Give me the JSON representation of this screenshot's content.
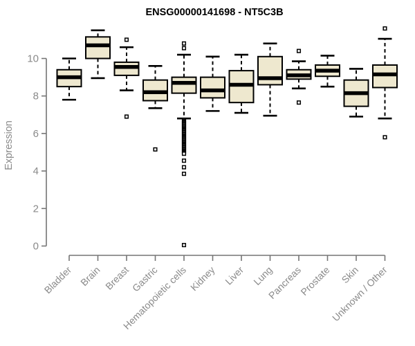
{
  "chart_data": {
    "type": "boxplot",
    "title": "ENSG00000141698 - NT5C3B",
    "ylabel": "Expression",
    "xlabel": "",
    "yticks": [
      0,
      2,
      4,
      6,
      8,
      10
    ],
    "ylim": [
      0,
      11.7
    ],
    "grid": false,
    "legend": "none",
    "categories": [
      "Bladder",
      "Brain",
      "Breast",
      "Gastric",
      "Hematopoietic cells",
      "Kidney",
      "Liver",
      "Lung",
      "Pancreas",
      "Prostate",
      "Skin",
      "Unknown / Other"
    ],
    "series": [
      {
        "category": "Bladder",
        "whisker_low": 7.8,
        "q1": 8.5,
        "median": 9.0,
        "q3": 9.4,
        "whisker_high": 10.0,
        "outliers": []
      },
      {
        "category": "Brain",
        "whisker_low": 8.95,
        "q1": 10.0,
        "median": 10.7,
        "q3": 11.15,
        "whisker_high": 11.5,
        "outliers": []
      },
      {
        "category": "Breast",
        "whisker_low": 8.3,
        "q1": 9.1,
        "median": 9.55,
        "q3": 9.8,
        "whisker_high": 10.6,
        "outliers": [
          11.0,
          6.9
        ]
      },
      {
        "category": "Gastric",
        "whisker_low": 7.35,
        "q1": 7.75,
        "median": 8.2,
        "q3": 8.85,
        "whisker_high": 9.6,
        "outliers": [
          5.15
        ]
      },
      {
        "category": "Hematopoietic cells",
        "whisker_low": 6.8,
        "q1": 8.15,
        "median": 8.7,
        "q3": 9.0,
        "whisker_high": 10.2,
        "outliers": [
          10.8,
          10.55,
          4.55,
          4.2,
          3.85,
          0.05
        ],
        "outlier_run": {
          "from": 6.72,
          "to": 4.92,
          "count": 32
        }
      },
      {
        "category": "Kidney",
        "whisker_low": 7.2,
        "q1": 7.9,
        "median": 8.3,
        "q3": 9.0,
        "whisker_high": 10.1,
        "outliers": []
      },
      {
        "category": "Liver",
        "whisker_low": 7.1,
        "q1": 7.65,
        "median": 8.6,
        "q3": 9.35,
        "whisker_high": 10.2,
        "outliers": []
      },
      {
        "category": "Lung",
        "whisker_low": 6.95,
        "q1": 8.6,
        "median": 8.95,
        "q3": 10.1,
        "whisker_high": 10.8,
        "outliers": []
      },
      {
        "category": "Pancreas",
        "whisker_low": 8.4,
        "q1": 8.9,
        "median": 9.1,
        "q3": 9.4,
        "whisker_high": 9.85,
        "outliers": [
          10.4,
          7.65
        ]
      },
      {
        "category": "Prostate",
        "whisker_low": 8.5,
        "q1": 9.05,
        "median": 9.35,
        "q3": 9.65,
        "whisker_high": 10.15,
        "outliers": []
      },
      {
        "category": "Skin",
        "whisker_low": 6.9,
        "q1": 7.45,
        "median": 8.15,
        "q3": 8.85,
        "whisker_high": 9.45,
        "outliers": []
      },
      {
        "category": "Unknown / Other",
        "whisker_low": 6.8,
        "q1": 8.45,
        "median": 9.15,
        "q3": 9.65,
        "whisker_high": 11.05,
        "outliers": [
          11.6,
          5.8
        ]
      }
    ]
  },
  "colors": {
    "box_fill": "#EEE8CF",
    "box_stroke": "#000000",
    "median": "#000000",
    "axis": "#757575",
    "label_gray": "#8a8a8a",
    "title": "#000000",
    "outlier_fill": "#ffffff",
    "background": "#ffffff"
  }
}
